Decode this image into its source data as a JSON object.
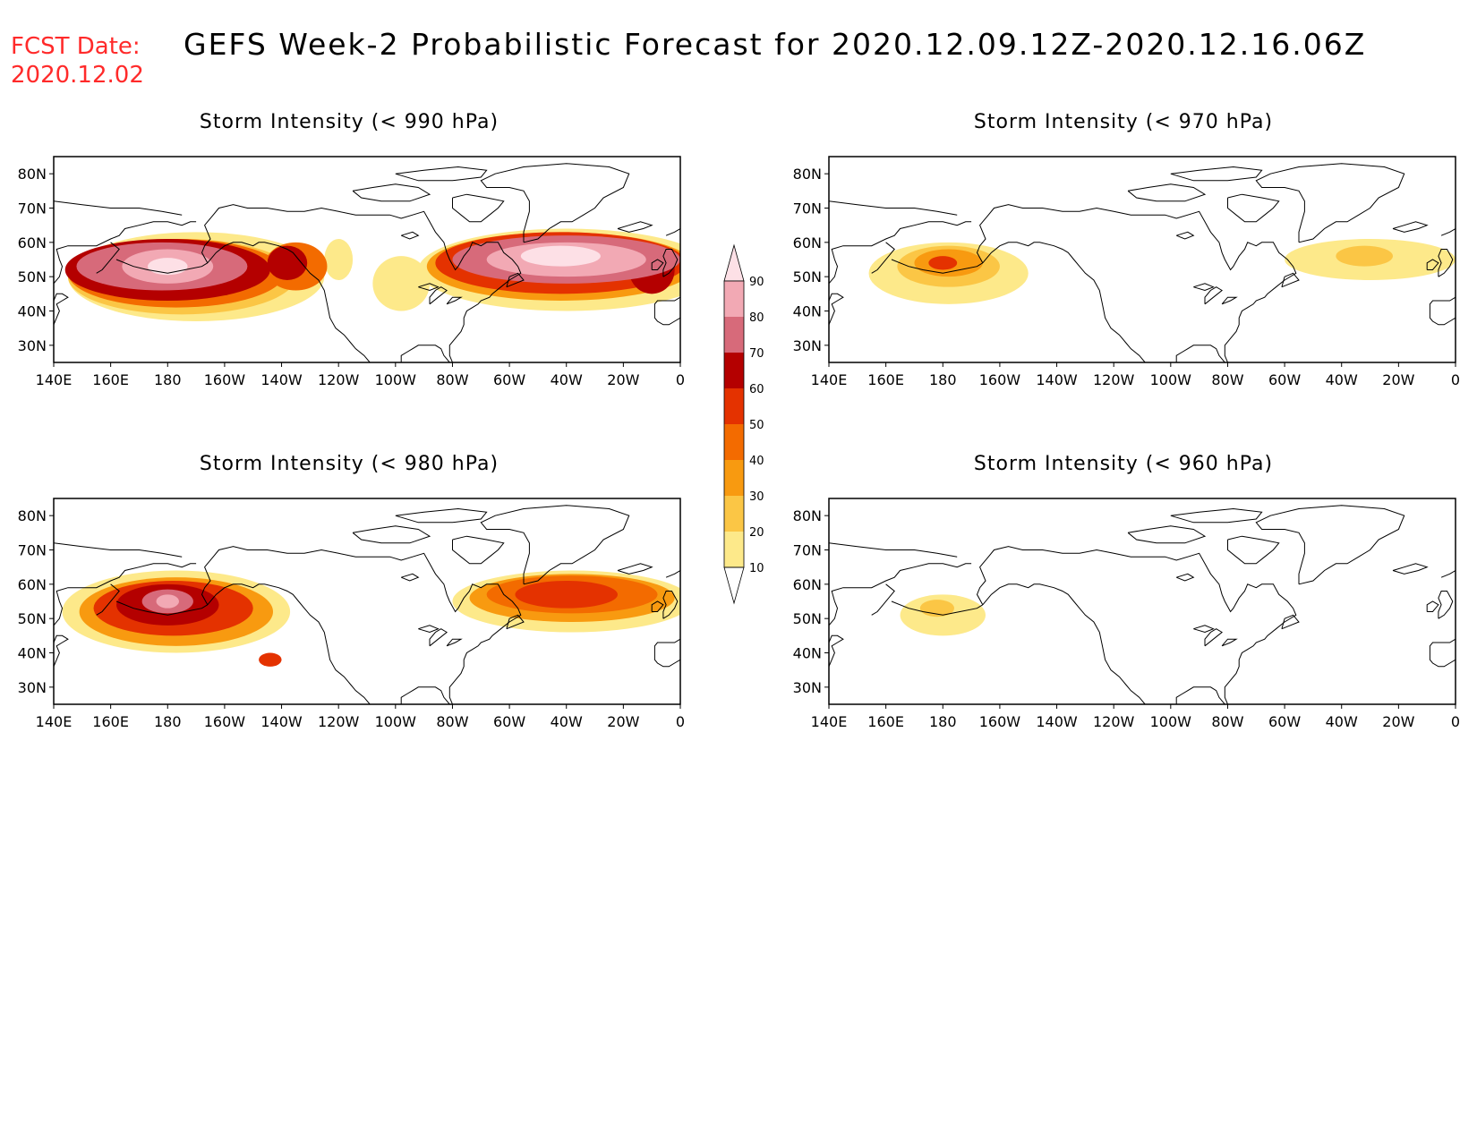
{
  "header": {
    "fcst_label": "FCST Date:",
    "fcst_date": "2020.12.02",
    "title": "GEFS Week-2 Probabilistic Forecast for 2020.12.09.12Z-2020.12.16.06Z"
  },
  "axes": {
    "lat_ticks": [
      "80N",
      "70N",
      "60N",
      "50N",
      "40N",
      "30N"
    ],
    "lat_values": [
      80,
      70,
      60,
      50,
      40,
      30
    ],
    "lon_ticks": [
      "140E",
      "160E",
      "180",
      "160W",
      "140W",
      "120W",
      "100W",
      "80W",
      "60W",
      "40W",
      "20W",
      "0"
    ],
    "lon_range": [
      140,
      360
    ],
    "lat_range": [
      25,
      85
    ]
  },
  "colorbar": {
    "levels": [
      "10",
      "20",
      "30",
      "40",
      "50",
      "60",
      "70",
      "80",
      "90"
    ],
    "colors": [
      "#fff8c0",
      "#fde98a",
      "#fbc645",
      "#f89a10",
      "#f36b00",
      "#e43200",
      "#b40000",
      "#d76a7a",
      "#f2a9b4",
      "#fde0e6"
    ]
  },
  "panels": [
    {
      "title": "Storm Intensity (< 990 hPa)",
      "blobs": [
        {
          "lon": 190,
          "lat": 50,
          "rx": 45,
          "ry": 13,
          "level": 1
        },
        {
          "lon": 185,
          "lat": 50,
          "rx": 40,
          "ry": 11,
          "level": 2
        },
        {
          "lon": 183,
          "lat": 51,
          "rx": 38,
          "ry": 10,
          "level": 4
        },
        {
          "lon": 180,
          "lat": 52,
          "rx": 36,
          "ry": 9,
          "level": 6
        },
        {
          "lon": 178,
          "lat": 53,
          "rx": 30,
          "ry": 7,
          "level": 7
        },
        {
          "lon": 180,
          "lat": 53,
          "rx": 16,
          "ry": 5,
          "level": 8
        },
        {
          "lon": 180,
          "lat": 53,
          "rx": 7,
          "ry": 2.5,
          "level": 9
        },
        {
          "lon": 225,
          "lat": 53,
          "rx": 11,
          "ry": 7,
          "level": 4
        },
        {
          "lon": 222,
          "lat": 54,
          "rx": 7,
          "ry": 5,
          "level": 6
        },
        {
          "lon": 240,
          "lat": 55,
          "rx": 5,
          "ry": 6,
          "level": 1
        },
        {
          "lon": 262,
          "lat": 48,
          "rx": 10,
          "ry": 8,
          "level": 1
        },
        {
          "lon": 320,
          "lat": 52,
          "rx": 52,
          "ry": 12,
          "level": 1
        },
        {
          "lon": 318,
          "lat": 53,
          "rx": 47,
          "ry": 10,
          "level": 3
        },
        {
          "lon": 318,
          "lat": 54,
          "rx": 44,
          "ry": 9,
          "level": 5
        },
        {
          "lon": 320,
          "lat": 55,
          "rx": 40,
          "ry": 7,
          "level": 7
        },
        {
          "lon": 320,
          "lat": 55,
          "rx": 28,
          "ry": 5,
          "level": 8
        },
        {
          "lon": 318,
          "lat": 56,
          "rx": 14,
          "ry": 3,
          "level": 9
        },
        {
          "lon": 350,
          "lat": 52,
          "rx": 8,
          "ry": 7,
          "level": 6
        }
      ]
    },
    {
      "title": "Storm Intensity (< 970 hPa)",
      "blobs": [
        {
          "lon": 182,
          "lat": 51,
          "rx": 28,
          "ry": 9,
          "level": 1
        },
        {
          "lon": 182,
          "lat": 53,
          "rx": 18,
          "ry": 6,
          "level": 2
        },
        {
          "lon": 182,
          "lat": 54,
          "rx": 12,
          "ry": 4,
          "level": 3
        },
        {
          "lon": 180,
          "lat": 54,
          "rx": 5,
          "ry": 2,
          "level": 5
        },
        {
          "lon": 330,
          "lat": 55,
          "rx": 30,
          "ry": 6,
          "level": 1
        },
        {
          "lon": 328,
          "lat": 56,
          "rx": 10,
          "ry": 3,
          "level": 2
        }
      ]
    },
    {
      "title": "Storm Intensity (< 980 hPa)",
      "blobs": [
        {
          "lon": 183,
          "lat": 52,
          "rx": 40,
          "ry": 12,
          "level": 1
        },
        {
          "lon": 183,
          "lat": 52,
          "rx": 34,
          "ry": 10,
          "level": 3
        },
        {
          "lon": 182,
          "lat": 53,
          "rx": 28,
          "ry": 8,
          "level": 5
        },
        {
          "lon": 180,
          "lat": 54,
          "rx": 18,
          "ry": 6,
          "level": 6
        },
        {
          "lon": 180,
          "lat": 55,
          "rx": 9,
          "ry": 3.5,
          "level": 7
        },
        {
          "lon": 180,
          "lat": 55,
          "rx": 4,
          "ry": 2,
          "level": 8
        },
        {
          "lon": 216,
          "lat": 38,
          "rx": 4,
          "ry": 2,
          "level": 5
        },
        {
          "lon": 322,
          "lat": 55,
          "rx": 42,
          "ry": 9,
          "level": 1
        },
        {
          "lon": 322,
          "lat": 56,
          "rx": 36,
          "ry": 7,
          "level": 3
        },
        {
          "lon": 322,
          "lat": 57,
          "rx": 30,
          "ry": 5.5,
          "level": 4
        },
        {
          "lon": 320,
          "lat": 57,
          "rx": 18,
          "ry": 4,
          "level": 5
        }
      ]
    },
    {
      "title": "Storm Intensity (< 960 hPa)",
      "blobs": [
        {
          "lon": 180,
          "lat": 51,
          "rx": 15,
          "ry": 6,
          "level": 1
        },
        {
          "lon": 178,
          "lat": 53,
          "rx": 6,
          "ry": 2.5,
          "level": 2
        }
      ]
    }
  ]
}
